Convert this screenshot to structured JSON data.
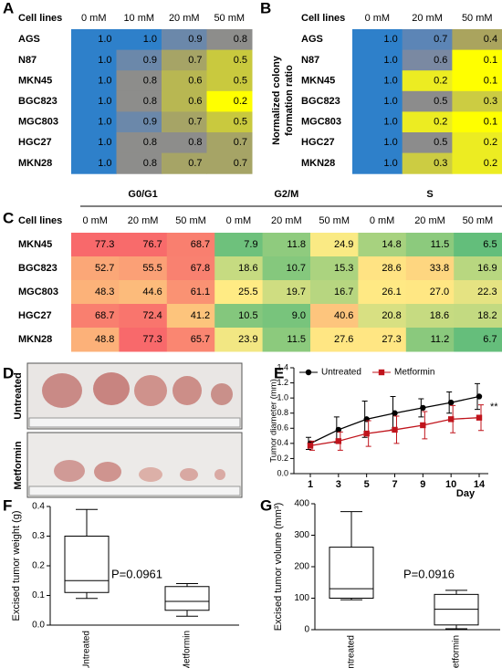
{
  "chart_data": [
    {
      "type": "heatmap",
      "panel": "A",
      "corner": "Cell lines",
      "columns": [
        "0 mM",
        "10 mM",
        "20 mM",
        "50 mM"
      ],
      "rows": [
        "AGS",
        "N87",
        "MKN45",
        "BGC823",
        "MGC803",
        "HGC27",
        "MKN28"
      ],
      "values": [
        [
          1.0,
          1.0,
          0.9,
          0.8
        ],
        [
          1.0,
          0.9,
          0.7,
          0.5
        ],
        [
          1.0,
          0.8,
          0.6,
          0.5
        ],
        [
          1.0,
          0.8,
          0.6,
          0.2
        ],
        [
          1.0,
          0.9,
          0.7,
          0.5
        ],
        [
          1.0,
          0.8,
          0.8,
          0.7
        ],
        [
          1.0,
          0.8,
          0.7,
          0.7
        ]
      ],
      "value_labels": [
        [
          "1.0",
          "1.0",
          "0.9",
          "0.8"
        ],
        [
          "1.0",
          "0.9",
          "0.7",
          "0.5"
        ],
        [
          "1.0",
          "0.8",
          "0.6",
          "0.5"
        ],
        [
          "1.0",
          "0.8",
          "0.6",
          "0.2"
        ],
        [
          "1.0",
          "0.9",
          "0.7",
          "0.5"
        ],
        [
          "1.0",
          "0.8",
          "0.8",
          "0.7"
        ],
        [
          "1.0",
          "0.8",
          "0.7",
          "0.7"
        ]
      ]
    },
    {
      "type": "heatmap",
      "panel": "B",
      "corner": "Cell lines",
      "ylabel": [
        "Normalized colony",
        "formation ratio"
      ],
      "columns": [
        "0 mM",
        "20 mM",
        "50 mM"
      ],
      "rows": [
        "AGS",
        "N87",
        "MKN45",
        "BGC823",
        "MGC803",
        "HGC27",
        "MKN28"
      ],
      "values": [
        [
          1.0,
          0.7,
          0.4
        ],
        [
          1.0,
          0.6,
          0.1
        ],
        [
          1.0,
          0.2,
          0.1
        ],
        [
          1.0,
          0.5,
          0.3
        ],
        [
          1.0,
          0.2,
          0.1
        ],
        [
          1.0,
          0.5,
          0.2
        ],
        [
          1.0,
          0.3,
          0.2
        ]
      ],
      "value_labels": [
        [
          "1.0",
          "0.7",
          "0.4"
        ],
        [
          "1.0",
          "0.6",
          "0.1"
        ],
        [
          "1.0",
          "0.2",
          "0.1"
        ],
        [
          "1.0",
          "0.5",
          "0.3"
        ],
        [
          "1.0",
          "0.2",
          "0.1"
        ],
        [
          "1.0",
          "0.5",
          "0.2"
        ],
        [
          "1.0",
          "0.3",
          "0.2"
        ]
      ]
    },
    {
      "type": "heatmap",
      "panel": "C",
      "corner": "Cell lines",
      "groups": [
        "G0/G1",
        "G2/M",
        "S"
      ],
      "columns": [
        "0 mM",
        "20 mM",
        "50 mM",
        "0 mM",
        "20 mM",
        "50 mM",
        "0 mM",
        "20 mM",
        "50 mM"
      ],
      "rows": [
        "MKN45",
        "BGC823",
        "MGC803",
        "HGC27",
        "MKN28"
      ],
      "values": [
        [
          77.3,
          76.7,
          68.7,
          7.9,
          11.8,
          24.9,
          14.8,
          11.5,
          6.5
        ],
        [
          52.7,
          55.5,
          67.8,
          18.6,
          10.7,
          15.3,
          28.6,
          33.8,
          16.9
        ],
        [
          48.3,
          44.6,
          61.1,
          25.5,
          19.7,
          16.7,
          26.1,
          27.0,
          22.3
        ],
        [
          68.7,
          72.4,
          41.2,
          10.5,
          9.0,
          40.6,
          20.8,
          18.6,
          18.2
        ],
        [
          48.8,
          77.3,
          65.7,
          23.9,
          11.5,
          27.6,
          27.3,
          11.2,
          6.7
        ]
      ],
      "value_labels": [
        [
          "77.3",
          "76.7",
          "68.7",
          "7.9",
          "11.8",
          "24.9",
          "14.8",
          "11.5",
          "6.5"
        ],
        [
          "52.7",
          "55.5",
          "67.8",
          "18.6",
          "10.7",
          "15.3",
          "28.6",
          "33.8",
          "16.9"
        ],
        [
          "48.3",
          "44.6",
          "61.1",
          "25.5",
          "19.7",
          "16.7",
          "26.1",
          "27.0",
          "22.3"
        ],
        [
          "68.7",
          "72.4",
          "41.2",
          "10.5",
          "9.0",
          "40.6",
          "20.8",
          "18.6",
          "18.2"
        ],
        [
          "48.8",
          "77.3",
          "65.7",
          "23.9",
          "11.5",
          "27.6",
          "27.3",
          "11.2",
          "6.7"
        ]
      ]
    },
    {
      "type": "line",
      "panel": "E",
      "ylabel": "Tumor diameter (mm)",
      "xlabel": "Day",
      "categories": [
        "1",
        "3",
        "5",
        "7",
        "9",
        "10",
        "14"
      ],
      "series": [
        {
          "name": "Untreated",
          "color": "#000000",
          "marker": "circle",
          "values": [
            0.4,
            0.58,
            0.72,
            0.8,
            0.87,
            0.94,
            1.02
          ],
          "errors": [
            0.08,
            0.17,
            0.24,
            0.22,
            0.12,
            0.14,
            0.17
          ]
        },
        {
          "name": "Metformin",
          "color": "#c0141c",
          "marker": "square",
          "values": [
            0.37,
            0.43,
            0.53,
            0.58,
            0.64,
            0.72,
            0.74
          ],
          "errors": [
            0.06,
            0.12,
            0.17,
            0.18,
            0.18,
            0.18,
            0.17
          ]
        }
      ],
      "ylim": [
        0,
        1.4
      ],
      "yticks": [
        {
          "value": 0,
          "label": "0.0"
        },
        0.2,
        0.4,
        0.6,
        0.8,
        {
          "value": 1,
          "label": "1.0"
        },
        1.2,
        1.4
      ],
      "annotation": "**"
    },
    {
      "type": "box",
      "panel": "F",
      "ylabel": "Excised tumor weight (g)",
      "categories": [
        "Untreated",
        "Metformin"
      ],
      "boxes": [
        {
          "min": 0.09,
          "q1": 0.11,
          "median": 0.15,
          "q3": 0.3,
          "max": 0.39
        },
        {
          "min": 0.03,
          "q1": 0.05,
          "median": 0.08,
          "q3": 0.13,
          "max": 0.14
        }
      ],
      "ylim": [
        0,
        0.4
      ],
      "yticks": [
        {
          "value": 0,
          "label": "0.0"
        },
        0.1,
        0.2,
        0.3,
        0.4
      ],
      "annotation": "P=0.0961"
    },
    {
      "type": "box",
      "panel": "G",
      "ylabel": "Excised tumor volume (mm³)",
      "categories": [
        "Untreated",
        "Metformin"
      ],
      "boxes": [
        {
          "min": 95,
          "q1": 100,
          "median": 130,
          "q3": 262,
          "max": 375
        },
        {
          "min": 3,
          "q1": 15,
          "median": 65,
          "q3": 112,
          "max": 125
        }
      ],
      "ylim": [
        0,
        400
      ],
      "yticks": [
        0,
        100,
        200,
        300,
        400
      ],
      "annotation": "P=0.0916"
    }
  ],
  "photo_panel": {
    "panel": "D",
    "rows": [
      "Untreated",
      "Metformin"
    ]
  }
}
